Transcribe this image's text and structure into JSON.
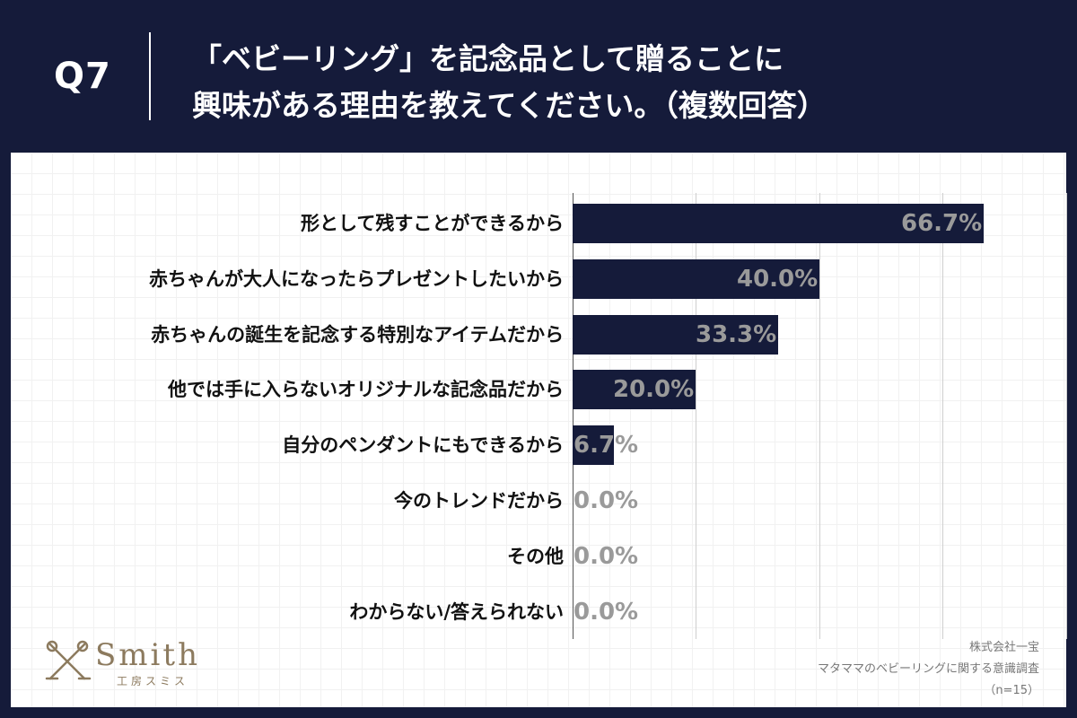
{
  "header": {
    "question": "Q7",
    "title_line1": "「ベビーリング」を記念品として贈ることに",
    "title_line2": "興味がある理由を教えてください。（複数回答）"
  },
  "chart_data": {
    "type": "bar",
    "orientation": "horizontal",
    "categories": [
      "形として残すことができるから",
      "赤ちゃんが大人になったらプレゼントしたいから",
      "赤ちゃんの誕生を記念する特別なアイテムだから",
      "他では手に入らないオリジナルな記念品だから",
      "自分のペンダントにもできるから",
      "今のトレンドだから",
      "その他",
      "わからない/答えられない"
    ],
    "values": [
      66.7,
      40.0,
      33.3,
      20.0,
      6.7,
      0.0,
      0.0,
      0.0
    ],
    "value_labels": [
      "66.7%",
      "40.0%",
      "33.3%",
      "20.0%",
      "6.7%",
      "0.0%",
      "0.0%",
      "0.0%"
    ],
    "xlim": [
      0,
      80
    ],
    "grid": true,
    "bar_color": "#151b3a",
    "label_color": "#9a9a9a"
  },
  "branding": {
    "logo_name": "Smith",
    "logo_sub": "工房スミス",
    "logo_color": "#8c7a5e",
    "logo_icon": "crossed-tools-icon"
  },
  "source": {
    "company": "株式会社一宝",
    "survey": "マタママのベビーリングに関する意識調査",
    "sample": "（n=15）"
  },
  "colors": {
    "background": "#151b3a",
    "panel": "#ffffff",
    "text": "#111111"
  }
}
